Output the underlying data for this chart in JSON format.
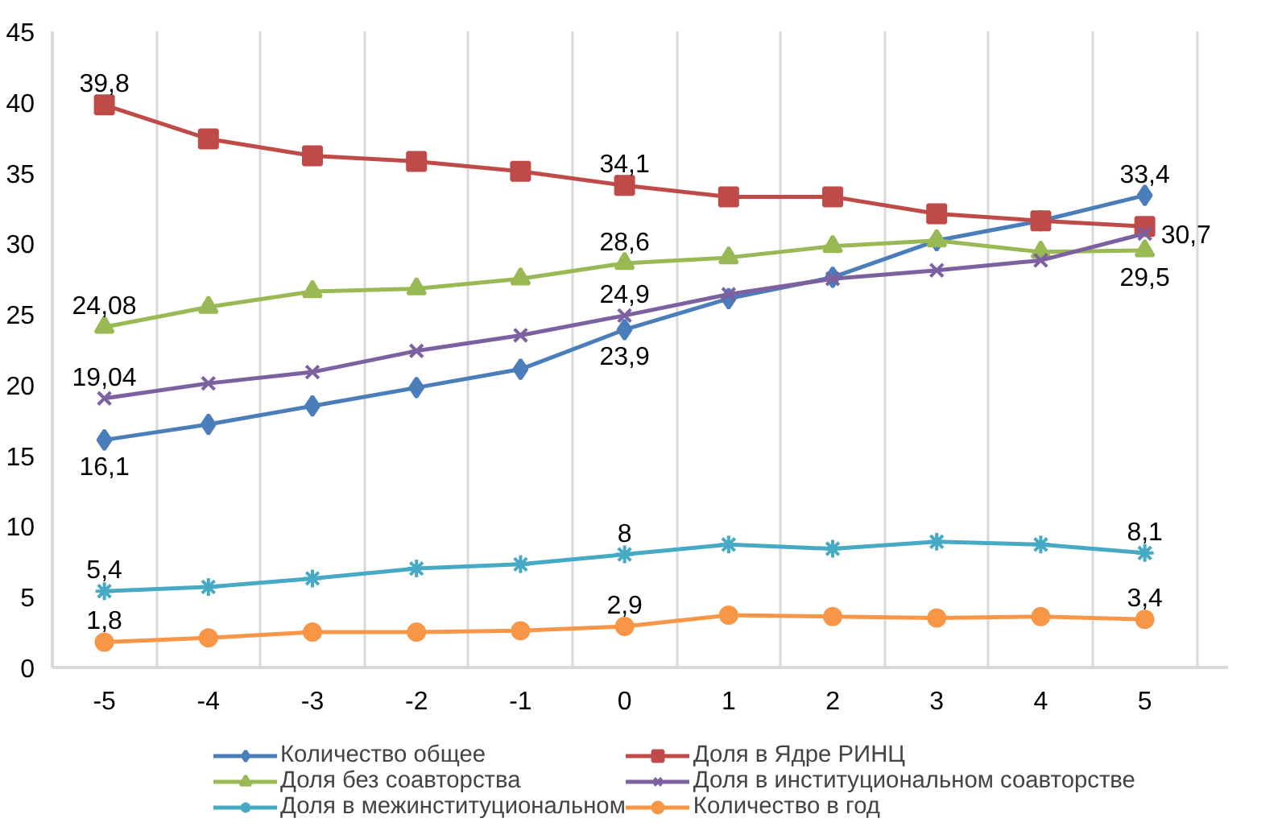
{
  "chart_data": {
    "type": "line",
    "categories": [
      "-5",
      "-4",
      "-3",
      "-2",
      "-1",
      "0",
      "1",
      "2",
      "3",
      "4",
      "5"
    ],
    "series": [
      {
        "name": "Количество общее",
        "color": "#4a7ebb",
        "marker": "diamond",
        "values": [
          16.1,
          17.2,
          18.5,
          19.8,
          21.1,
          23.9,
          26.1,
          27.6,
          30.2,
          31.6,
          33.4
        ],
        "value_labels": [
          "16,1",
          null,
          null,
          null,
          null,
          "23,9",
          null,
          null,
          null,
          null,
          "33,4"
        ]
      },
      {
        "name": "Доля в Ядре РИНЦ",
        "color": "#be4b48",
        "marker": "square",
        "values": [
          39.8,
          37.4,
          36.2,
          35.8,
          35.1,
          34.1,
          33.3,
          33.3,
          32.1,
          31.6,
          31.2
        ],
        "value_labels": [
          "39,8",
          null,
          null,
          null,
          null,
          "34,1",
          null,
          null,
          null,
          null,
          null
        ]
      },
      {
        "name": "Доля без соавторства",
        "color": "#98b954",
        "marker": "triangle",
        "values": [
          24.08,
          25.5,
          26.6,
          26.8,
          27.5,
          28.6,
          29.0,
          29.8,
          30.2,
          29.4,
          29.5
        ],
        "value_labels": [
          "24,08",
          null,
          null,
          null,
          null,
          "28,6",
          null,
          null,
          null,
          null,
          "29,5"
        ]
      },
      {
        "name": "Доля в институциональном соавторстве",
        "color": "#7d60a0",
        "marker": "x",
        "values": [
          19.04,
          20.1,
          20.9,
          22.4,
          23.5,
          24.9,
          26.4,
          27.5,
          28.1,
          28.8,
          30.7
        ],
        "value_labels": [
          "19,04",
          null,
          null,
          null,
          null,
          "24,9",
          null,
          null,
          null,
          null,
          "30,7"
        ]
      },
      {
        "name": "Доля в межинституциональном",
        "color": "#46aac5",
        "marker": "cross",
        "values": [
          5.4,
          5.7,
          6.3,
          7.0,
          7.3,
          8,
          8.7,
          8.4,
          8.9,
          8.7,
          8.1
        ],
        "value_labels": [
          "5,4",
          null,
          null,
          null,
          null,
          "8",
          null,
          null,
          null,
          null,
          "8,1"
        ]
      },
      {
        "name": "Количество в год",
        "color": "#f79646",
        "marker": "circle",
        "values": [
          1.8,
          2.1,
          2.5,
          2.5,
          2.6,
          2.9,
          3.7,
          3.6,
          3.5,
          3.6,
          3.4
        ],
        "value_labels": [
          "1,8",
          null,
          null,
          null,
          null,
          "2,9",
          null,
          null,
          null,
          null,
          "3,4"
        ]
      }
    ],
    "ylim": [
      0,
      45
    ],
    "yticks": [
      0,
      5,
      10,
      15,
      20,
      25,
      30,
      35,
      40,
      45
    ],
    "grid": "x",
    "legend": "bottom",
    "line_style": "solid"
  }
}
